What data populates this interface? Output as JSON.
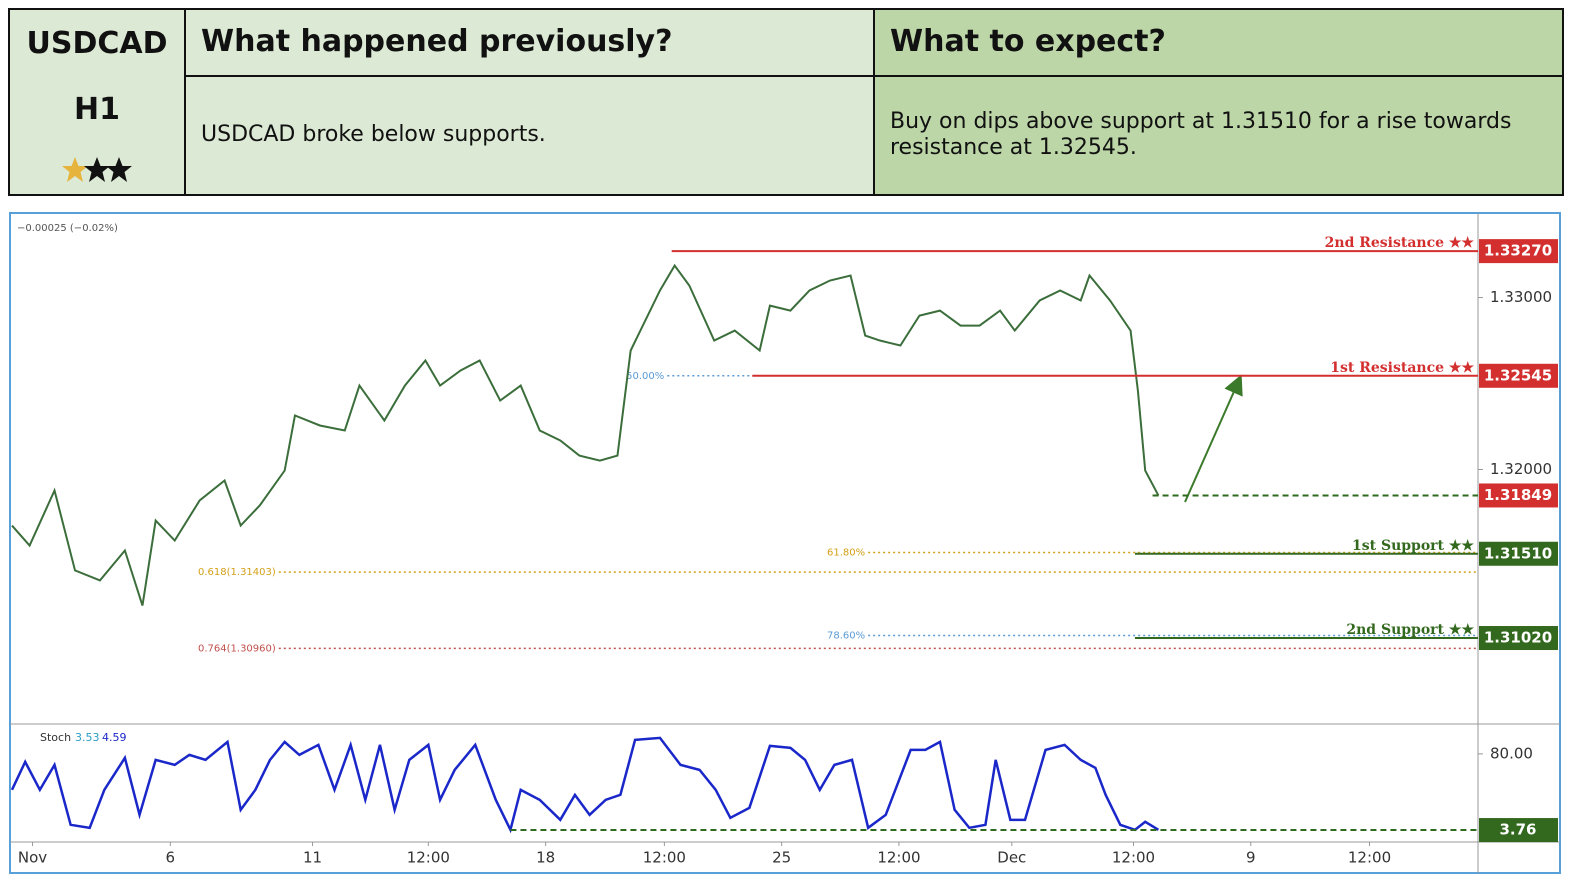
{
  "header": {
    "pair": "USDCAD",
    "timeframe": "H1",
    "previous_title": "What happened previously?",
    "expect_title": "What to expect?",
    "previous_text": "USDCAD broke below supports.",
    "expect_text": "Buy on dips above support at 1.31510 for a rise towards resistance at 1.32545."
  },
  "chart_data": [
    {
      "type": "line",
      "annotation": "−0.00025 (−0.02%)",
      "color": "#3b6e3b",
      "xlim": [
        0,
        100
      ],
      "ylim": [
        1.3052,
        1.3348
      ],
      "xticks": [
        {
          "value": 1.4,
          "label": "Nov"
        },
        {
          "value": 10.8,
          "label": "6"
        },
        {
          "value": 20.5,
          "label": "11"
        },
        {
          "value": 28.4,
          "label": "12:00"
        },
        {
          "value": 36.4,
          "label": "18"
        },
        {
          "value": 44.5,
          "label": "12:00"
        },
        {
          "value": 52.5,
          "label": "25"
        },
        {
          "value": 60.5,
          "label": "12:00"
        },
        {
          "value": 68.2,
          "label": "Dec"
        },
        {
          "value": 76.5,
          "label": "12:00"
        },
        {
          "value": 84.5,
          "label": "9"
        },
        {
          "value": 92.6,
          "label": "12:00"
        }
      ],
      "yticks": [
        {
          "value": 1.33,
          "label": "1.33000"
        },
        {
          "value": 1.32,
          "label": "1.32000"
        }
      ],
      "x": [
        0,
        1.2,
        2.9,
        4.3,
        6.0,
        7.7,
        8.9,
        9.8,
        11.1,
        12.8,
        14.5,
        15.6,
        16.9,
        18.6,
        19.3,
        21.0,
        22.7,
        23.7,
        25.4,
        26.8,
        28.2,
        29.2,
        30.6,
        31.9,
        33.3,
        34.7,
        36.0,
        37.4,
        38.7,
        40.1,
        41.3,
        42.2,
        44.2,
        45.2,
        46.2,
        47.9,
        49.3,
        51.0,
        51.7,
        53.1,
        54.4,
        55.8,
        57.2,
        58.2,
        59.2,
        60.6,
        61.9,
        63.3,
        64.7,
        66.0,
        67.4,
        68.4,
        70.1,
        71.5,
        72.9,
        73.5,
        74.9,
        76.3,
        76.8,
        77.3,
        78.2
      ],
      "values": [
        1.31674,
        1.31558,
        1.31878,
        1.31413,
        1.31355,
        1.31529,
        1.31209,
        1.31703,
        1.31587,
        1.3182,
        1.31936,
        1.31674,
        1.31791,
        1.31994,
        1.32314,
        1.32256,
        1.32227,
        1.32488,
        1.32285,
        1.32488,
        1.32634,
        1.32488,
        1.32576,
        1.32634,
        1.32401,
        1.32488,
        1.32227,
        1.32169,
        1.32081,
        1.32052,
        1.32081,
        1.32692,
        1.33041,
        1.33186,
        1.3307,
        1.3275,
        1.32808,
        1.32692,
        1.32953,
        1.32924,
        1.33041,
        1.33099,
        1.33128,
        1.32779,
        1.3275,
        1.32721,
        1.32895,
        1.32924,
        1.32837,
        1.32837,
        1.32924,
        1.32808,
        1.32983,
        1.33041,
        1.32983,
        1.33128,
        1.32983,
        1.32808,
        1.32459,
        1.31994,
        1.31849
      ],
      "levels": [
        {
          "name": "2nd Resistance ★★",
          "value": 1.3327,
          "label": "1.33270",
          "color": "#d32f2f",
          "line_color": "#d32f2f",
          "from": 45.0
        },
        {
          "name": "1st Resistance ★★",
          "value": 1.32545,
          "label": "1.32545",
          "color": "#d32f2f",
          "line_color": "#d32f2f",
          "from": 50.5
        },
        {
          "value": 1.31849,
          "label": "1.31849",
          "color": "#d32f2f",
          "line_color": "#2e6b1e",
          "from": 77.8,
          "dashed": true
        },
        {
          "name": "1st Support ★★",
          "value": 1.3151,
          "label": "1.31510",
          "color": "#33691e",
          "line_color": "#33691e",
          "from": 76.6
        },
        {
          "name": "2nd Support ★★",
          "value": 1.3102,
          "label": "1.31020",
          "color": "#33691e",
          "line_color": "#33691e",
          "from": 76.6
        }
      ],
      "fibs": [
        {
          "label": "50.00%",
          "value": 1.32545,
          "from": 44.7,
          "to": 50.7,
          "color": "#5b9bd5"
        },
        {
          "label": "61.80%",
          "value": 1.31517,
          "from": 58.4,
          "to": 100,
          "color": "#d4a017"
        },
        {
          "label": "0.618(1.31403)",
          "value": 1.31403,
          "from": 18.2,
          "to": 100,
          "color": "#d4a017"
        },
        {
          "label": "78.60%",
          "value": 1.31035,
          "from": 58.4,
          "to": 100,
          "color": "#5b9bd5"
        },
        {
          "label": "0.764(1.30960)",
          "value": 1.3096,
          "from": 18.2,
          "to": 100,
          "color": "#c0504d"
        }
      ]
    },
    {
      "type": "line",
      "xlim": [
        0,
        100
      ],
      "ylim": [
        -8.2,
        109.9
      ],
      "yticks": [
        {
          "value": 80,
          "label": "80.00"
        }
      ],
      "x": [
        0,
        0.9,
        1.9,
        2.9,
        4.0,
        5.3,
        6.3,
        7.7,
        8.7,
        9.8,
        11.1,
        12.1,
        13.2,
        14.7,
        15.6,
        16.6,
        17.6,
        18.6,
        19.6,
        20.9,
        22.0,
        23.1,
        24.1,
        25.1,
        26.1,
        27.1,
        28.4,
        29.2,
        30.2,
        31.6,
        33.0,
        34.0,
        34.7,
        36.0,
        37.4,
        38.4,
        39.4,
        40.5,
        41.5,
        42.5,
        44.2,
        45.6,
        46.9,
        48.0,
        49.0,
        50.3,
        51.7,
        53.1,
        54.1,
        55.1,
        56.1,
        57.3,
        58.4,
        59.6,
        61.3,
        62.3,
        63.3,
        64.3,
        65.3,
        66.4,
        67.1,
        68.1,
        69.1,
        70.5,
        71.8,
        72.9,
        73.9,
        74.6,
        75.6,
        76.6,
        77.3,
        78.2
      ],
      "series": [
        {
          "name": "Stoch",
          "color": "#1a27c9",
          "values": [
            44,
            72,
            44,
            69,
            9,
            6,
            44,
            76,
            19,
            74,
            69,
            79,
            74,
            92,
            24,
            44,
            74,
            92,
            79,
            89,
            44,
            89,
            34,
            89,
            24,
            74,
            89,
            34,
            64,
            89,
            34,
            4,
            44,
            34,
            14,
            39,
            19,
            34,
            39,
            94,
            96,
            69,
            64,
            44,
            16,
            26,
            88,
            86,
            74,
            44,
            69,
            74,
            6,
            19,
            84,
            84,
            92,
            24,
            6,
            9,
            74,
            14,
            14,
            84,
            89,
            74,
            66,
            39,
            9,
            4,
            12,
            4
          ]
        }
      ],
      "readings": [
        {
          "value": 3.53,
          "color": "#2aa0c8"
        },
        {
          "value": 4.59,
          "color": "#1a27c9"
        }
      ],
      "levels": [
        {
          "value": 3.76,
          "color": "#33691e",
          "line_color": "#2e6b1e",
          "from": 34.0,
          "dashed": true
        }
      ]
    }
  ]
}
